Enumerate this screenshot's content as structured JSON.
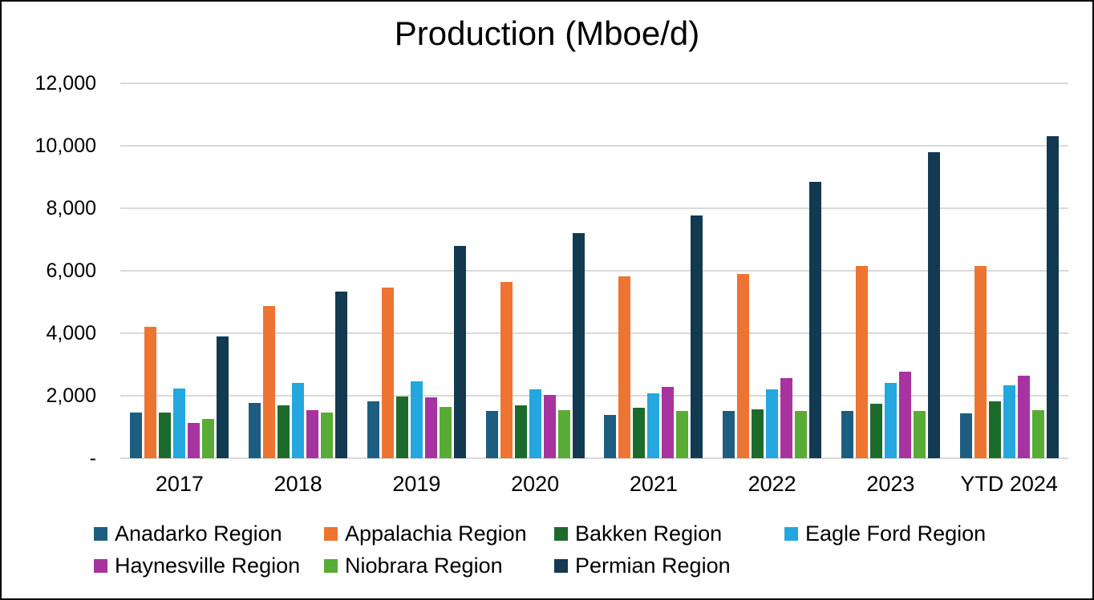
{
  "chart_data": {
    "type": "bar",
    "title": "Production (Mboe/d)",
    "categories": [
      "2017",
      "2018",
      "2019",
      "2020",
      "2021",
      "2022",
      "2023",
      "YTD 2024"
    ],
    "series": [
      {
        "name": "Anadarko Region",
        "color": "#1D5E80",
        "values": [
          1450,
          1775,
          1825,
          1500,
          1375,
          1500,
          1500,
          1425
        ]
      },
      {
        "name": "Appalachia Region",
        "color": "#ED7431",
        "values": [
          4200,
          4875,
          5450,
          5650,
          5825,
          5900,
          6150,
          6150
        ]
      },
      {
        "name": "Bakken Region",
        "color": "#1D6B2C",
        "values": [
          1450,
          1700,
          1975,
          1700,
          1625,
          1575,
          1750,
          1825
        ]
      },
      {
        "name": "Eagle Ford Region",
        "color": "#24A7DE",
        "values": [
          2225,
          2400,
          2450,
          2200,
          2075,
          2200,
          2400,
          2325
        ]
      },
      {
        "name": "Haynesville Region",
        "color": "#A7339E",
        "values": [
          1125,
          1550,
          1950,
          2025,
          2275,
          2575,
          2775,
          2650
        ]
      },
      {
        "name": "Niobrara Region",
        "color": "#58AC35",
        "values": [
          1250,
          1450,
          1650,
          1550,
          1500,
          1500,
          1500,
          1550
        ]
      },
      {
        "name": "Permian Region",
        "color": "#123A51",
        "values": [
          3900,
          5325,
          6800,
          7200,
          7775,
          8850,
          9800,
          10300
        ]
      }
    ],
    "ylim": [
      0,
      12000
    ],
    "ytick_step": 2000,
    "ytick_labels": [
      "-",
      "2,000",
      "4,000",
      "6,000",
      "8,000",
      "10,000",
      "12,000"
    ],
    "grid": true,
    "gridline_color": "#D9D9D9",
    "legend_position": "bottom",
    "legend_rows": [
      [
        0,
        1,
        2,
        3
      ],
      [
        4,
        5,
        6
      ]
    ]
  }
}
